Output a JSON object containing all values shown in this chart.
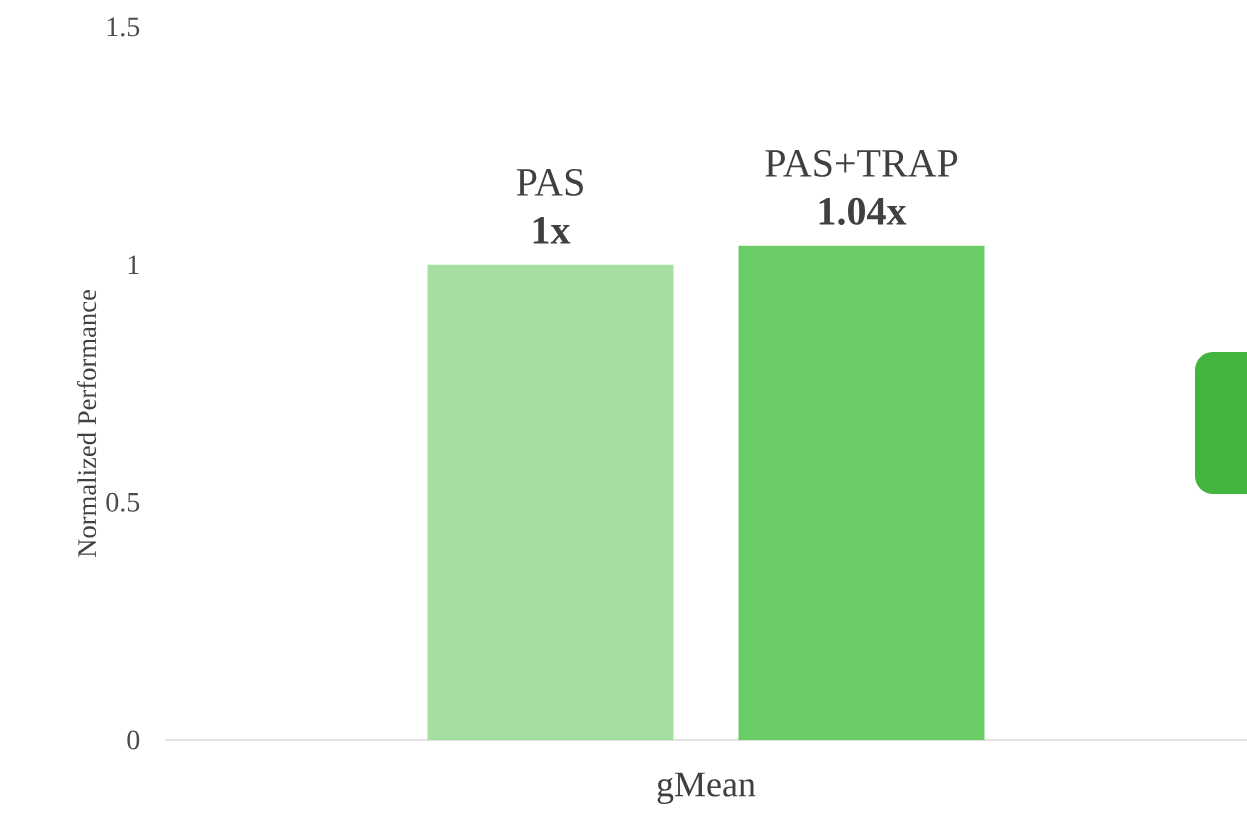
{
  "chart_data": {
    "type": "bar",
    "ylabel": "Normalized Performance",
    "categories": [
      "gMean"
    ],
    "series": [
      {
        "name": "PAS",
        "color": "#a5df9f",
        "values": [
          1
        ],
        "value_labels": [
          "1x"
        ]
      },
      {
        "name": "PAS+TRAP",
        "color": "#6acc65",
        "values": [
          1.04
        ],
        "value_labels": [
          "1.04x"
        ]
      }
    ],
    "ylim": [
      0,
      1.5
    ],
    "yticks": [
      0,
      0.5,
      1,
      1.5
    ]
  }
}
